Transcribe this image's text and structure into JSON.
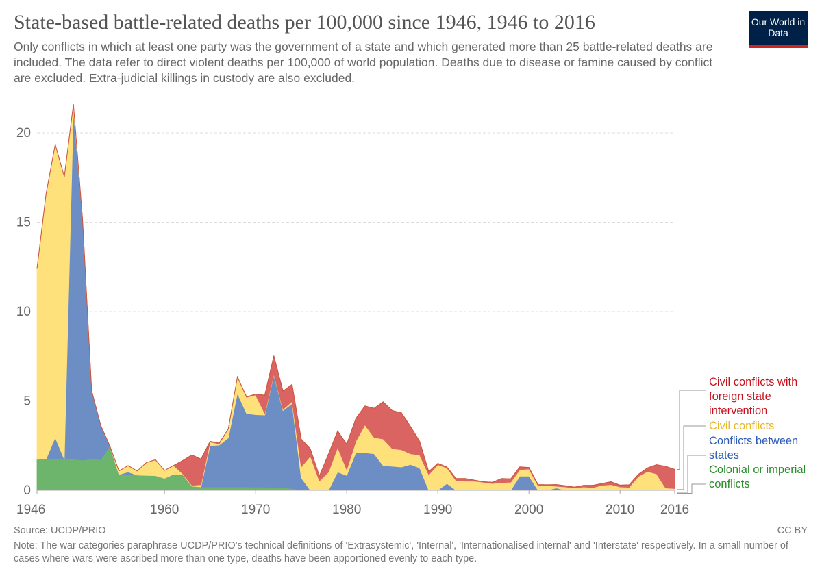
{
  "header": {
    "title": "State-based battle-related deaths per 100,000 since 1946, 1946 to 2016",
    "subtitle": "Only conflicts in which at least one party was the government of a state and which generated more than 25 battle-related deaths are included. The data refer to direct violent deaths per 100,000 of world population. Deaths due to disease or famine caused by conflict are excluded. Extra-judicial killings in custody are also excluded.",
    "logo": "Our World in Data"
  },
  "footer": {
    "source": "Source: UCDP/PRIO",
    "license": "CC BY",
    "note": "Note: The war categories paraphrase UCDP/PRIO's technical definitions of 'Extrasystemic', 'Internal', 'Internationalised internal' and 'Interstate' respectively. In a small number of cases where wars were ascribed more than one type, deaths have been apportioned evenly to each type."
  },
  "chart_data": {
    "type": "area",
    "stacked": true,
    "title": "State-based battle-related deaths per 100,000 since 1946, 1946 to 2016",
    "xlim": [
      1946,
      2016
    ],
    "ylim": [
      0,
      21.6
    ],
    "x_ticks": [
      "1946",
      "1960",
      "1970",
      "1980",
      "1990",
      "2000",
      "2010",
      "2016"
    ],
    "y_ticks": [
      "0",
      "5",
      "10",
      "15",
      "20"
    ],
    "grid": "horizontal dashed",
    "legend_placement": "right",
    "x": [
      1946,
      1947,
      1948,
      1949,
      1950,
      1951,
      1952,
      1953,
      1954,
      1955,
      1956,
      1957,
      1958,
      1959,
      1960,
      1961,
      1962,
      1963,
      1964,
      1965,
      1966,
      1967,
      1968,
      1969,
      1970,
      1971,
      1972,
      1973,
      1974,
      1975,
      1976,
      1977,
      1978,
      1979,
      1980,
      1981,
      1982,
      1983,
      1984,
      1985,
      1986,
      1987,
      1988,
      1989,
      1990,
      1991,
      1992,
      1993,
      1994,
      1995,
      1996,
      1997,
      1998,
      1999,
      2000,
      2001,
      2002,
      2003,
      2004,
      2005,
      2006,
      2007,
      2008,
      2009,
      2010,
      2011,
      2012,
      2013,
      2014,
      2015,
      2016
    ],
    "series": [
      {
        "name": "Colonial or imperial conflicts",
        "color": "#6db56d",
        "label_color": "#2a8e2a",
        "values": [
          1.73,
          1.75,
          1.75,
          1.73,
          1.75,
          1.68,
          1.76,
          1.71,
          2.48,
          0.88,
          0.9,
          0.85,
          0.83,
          0.82,
          0.67,
          0.85,
          0.85,
          0.23,
          0.19,
          0.19,
          0.19,
          0.19,
          0.19,
          0.19,
          0.18,
          0.18,
          0.17,
          0.15,
          0.1,
          0.02,
          0,
          0,
          0,
          0,
          0,
          0,
          0,
          0,
          0,
          0,
          0,
          0,
          0,
          0,
          0,
          0,
          0,
          0,
          0,
          0,
          0,
          0,
          0,
          0,
          0,
          0,
          0,
          0,
          0,
          0,
          0,
          0,
          0,
          0,
          0,
          0,
          0,
          0,
          0,
          0,
          0
        ]
      },
      {
        "name": "Conflicts between states",
        "color": "#6c8ec4",
        "label_color": "#2f5db5",
        "values": [
          0,
          0,
          1.2,
          0,
          19.55,
          13.47,
          3.81,
          1.92,
          0,
          0,
          0.12,
          0,
          0,
          0,
          0,
          0.04,
          0.02,
          0,
          0,
          2.3,
          2.34,
          2.74,
          5.23,
          4.11,
          4.05,
          4.03,
          6.28,
          4.31,
          4.75,
          0.68,
          0,
          0,
          0,
          1.02,
          0.83,
          2.1,
          2.1,
          2.04,
          1.38,
          1.34,
          1.3,
          1.44,
          1.25,
          0,
          0,
          0.38,
          0,
          0,
          0,
          0,
          0,
          0,
          0,
          0.79,
          0.79,
          0,
          0,
          0.13,
          0,
          0,
          0,
          0,
          0,
          0,
          0,
          0,
          0,
          0,
          0,
          0,
          0
        ]
      },
      {
        "name": "Civil conflicts",
        "color": "#fee17a",
        "label_color": "#e8b820",
        "values": [
          10.67,
          14.85,
          16.4,
          15.82,
          0.3,
          0,
          0,
          0,
          0,
          0.2,
          0.36,
          0.23,
          0.72,
          0.89,
          0.44,
          0.5,
          0.05,
          0.05,
          0.12,
          0.21,
          0.07,
          0.5,
          0.93,
          0.9,
          1.1,
          0.09,
          0.05,
          0.07,
          0.12,
          0.6,
          1.91,
          0.52,
          1.02,
          1.38,
          0.32,
          0.64,
          1.56,
          0.92,
          1.49,
          0.99,
          0.97,
          0.6,
          0.73,
          0.87,
          1.43,
          0.87,
          0.54,
          0.51,
          0.51,
          0.45,
          0.38,
          0.43,
          0.45,
          0.36,
          0.4,
          0.26,
          0.26,
          0.1,
          0.19,
          0.13,
          0.19,
          0.15,
          0.28,
          0.32,
          0.19,
          0.17,
          0.77,
          1.05,
          0.92,
          0.13,
          0.1
        ]
      },
      {
        "name": "Civil conflicts with foreign state intervention",
        "color": "#d96461",
        "label_color": "#c7131d",
        "values": [
          0,
          0,
          0,
          0,
          0,
          0,
          0,
          0,
          0,
          0,
          0,
          0,
          0,
          0,
          0,
          0,
          0.75,
          1.7,
          1.44,
          0.04,
          0.04,
          0.01,
          0,
          0.03,
          0.05,
          1.02,
          1.03,
          1.02,
          0.96,
          1.57,
          0.41,
          0.28,
          1.02,
          0.92,
          1.43,
          1.28,
          1.06,
          1.63,
          2.08,
          2.13,
          2.07,
          1.53,
          0.76,
          0.18,
          0.08,
          0.05,
          0.12,
          0.15,
          0.06,
          0.03,
          0.07,
          0.23,
          0.19,
          0.16,
          0.09,
          0.06,
          0.05,
          0.09,
          0.07,
          0.05,
          0.09,
          0.13,
          0.1,
          0.16,
          0.1,
          0.14,
          0.12,
          0.2,
          0.51,
          1.21,
          1.07
        ]
      }
    ]
  },
  "legend": {
    "red": "Civil conflicts with foreign state intervention",
    "yellow": "Civil conflicts",
    "blue": "Conflicts between states",
    "green": "Colonial or imperial conflicts"
  }
}
